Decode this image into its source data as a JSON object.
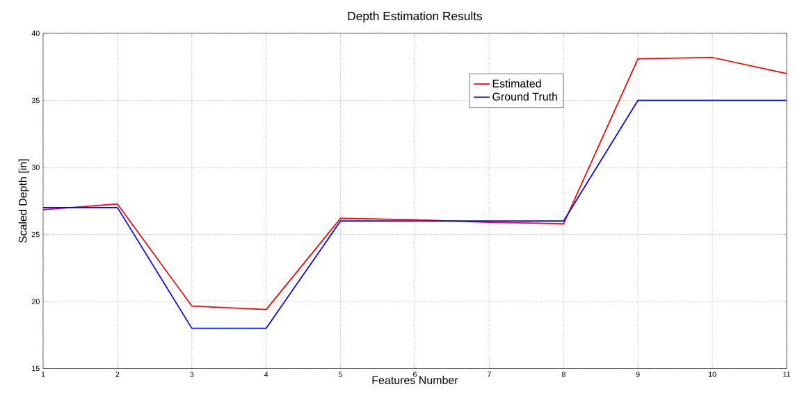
{
  "chart_data": {
    "type": "line",
    "title": "Depth Estimation Results",
    "xlabel": "Features Number",
    "ylabel": "Scaled Depth [in]",
    "x": [
      1,
      2,
      3,
      4,
      5,
      6,
      7,
      8,
      9,
      10,
      11
    ],
    "series": [
      {
        "name": "Estimated",
        "color": "#ff0000",
        "values": [
          26.85,
          27.27,
          19.66,
          19.4,
          26.2,
          26.1,
          25.9,
          25.8,
          38.1,
          38.2,
          37.0
        ]
      },
      {
        "name": "Ground Truth",
        "color": "#0000ff",
        "values": [
          27,
          27,
          18,
          18,
          26,
          26,
          26,
          26,
          35,
          35,
          35
        ]
      }
    ],
    "xlim": [
      1,
      11
    ],
    "ylim": [
      15,
      40
    ],
    "xticks": [
      1,
      2,
      3,
      4,
      5,
      6,
      7,
      8,
      9,
      10,
      11
    ],
    "yticks": [
      15,
      20,
      25,
      30,
      35,
      40
    ],
    "grid": true,
    "legend": "top right",
    "marker": "none",
    "line_style": "solid"
  }
}
